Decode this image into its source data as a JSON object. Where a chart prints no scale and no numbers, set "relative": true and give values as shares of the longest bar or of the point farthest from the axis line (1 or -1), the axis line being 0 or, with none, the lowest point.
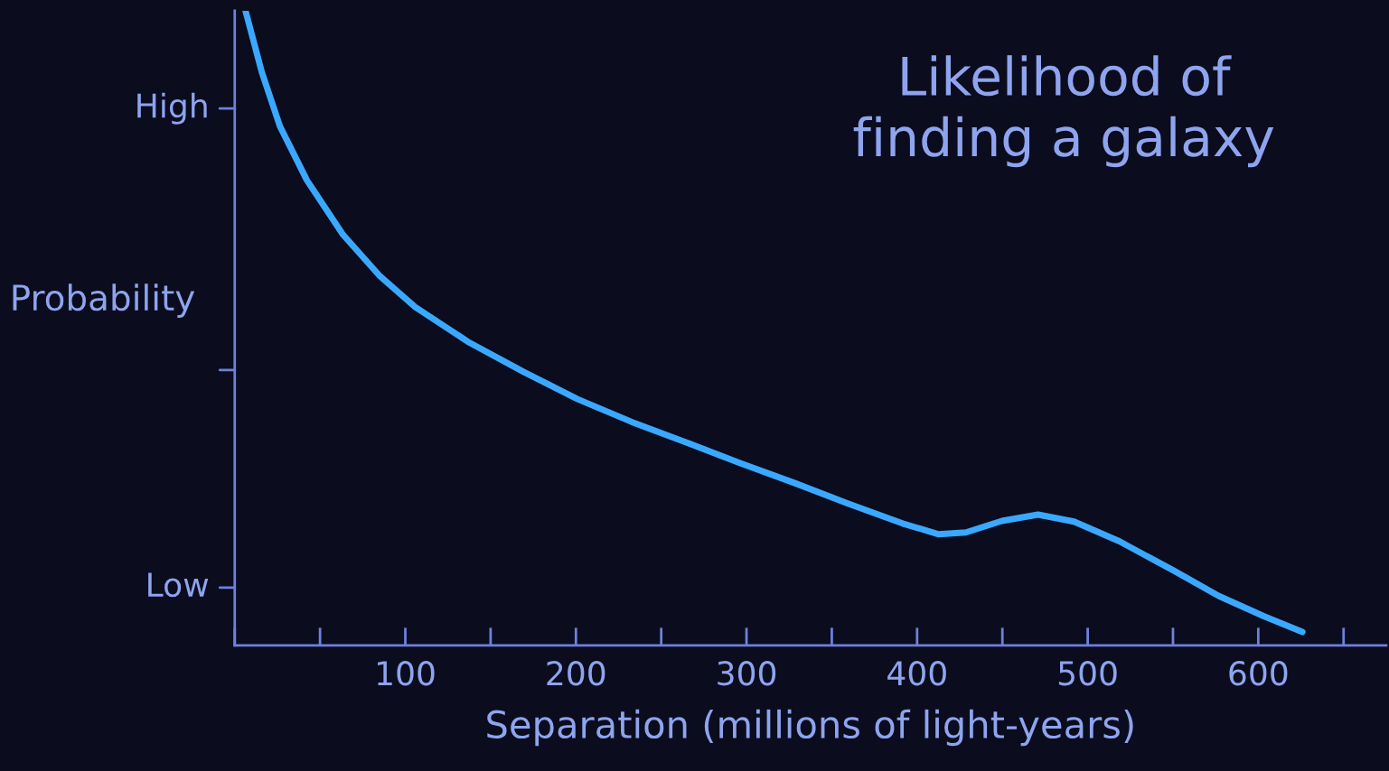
{
  "chart_data": {
    "type": "line",
    "title": "Likelihood of\nfinding a galaxy",
    "xlabel": "Separation (millions of light-years)",
    "ylabel": "Probability",
    "relative": true,
    "xlim": [
      0,
      675
    ],
    "xticks": [
      100,
      200,
      300,
      400,
      500,
      600
    ],
    "annotations": [
      "High",
      "Low"
    ],
    "grid": false,
    "legend": false,
    "marker": "none",
    "line_style": "solid",
    "x": [
      6.3,
      15.9,
      26.5,
      42.3,
      63.5,
      84.7,
      105.8,
      137.6,
      169.3,
      201,
      232.8,
      264.6,
      296.3,
      328,
      359.8,
      391.5,
      412.7,
      428.6,
      449.7,
      470.9,
      492,
      518.5,
      550.3,
      576.7,
      603.2,
      625.9
    ],
    "series": [
      {
        "color": "#3aa8ff",
        "values": [
          1.0,
          0.903,
          0.818,
          0.733,
          0.647,
          0.583,
          0.533,
          0.477,
          0.431,
          0.388,
          0.352,
          0.32,
          0.287,
          0.256,
          0.223,
          0.192,
          0.175,
          0.178,
          0.196,
          0.206,
          0.195,
          0.164,
          0.118,
          0.078,
          0.046,
          0.021
        ]
      }
    ]
  }
}
